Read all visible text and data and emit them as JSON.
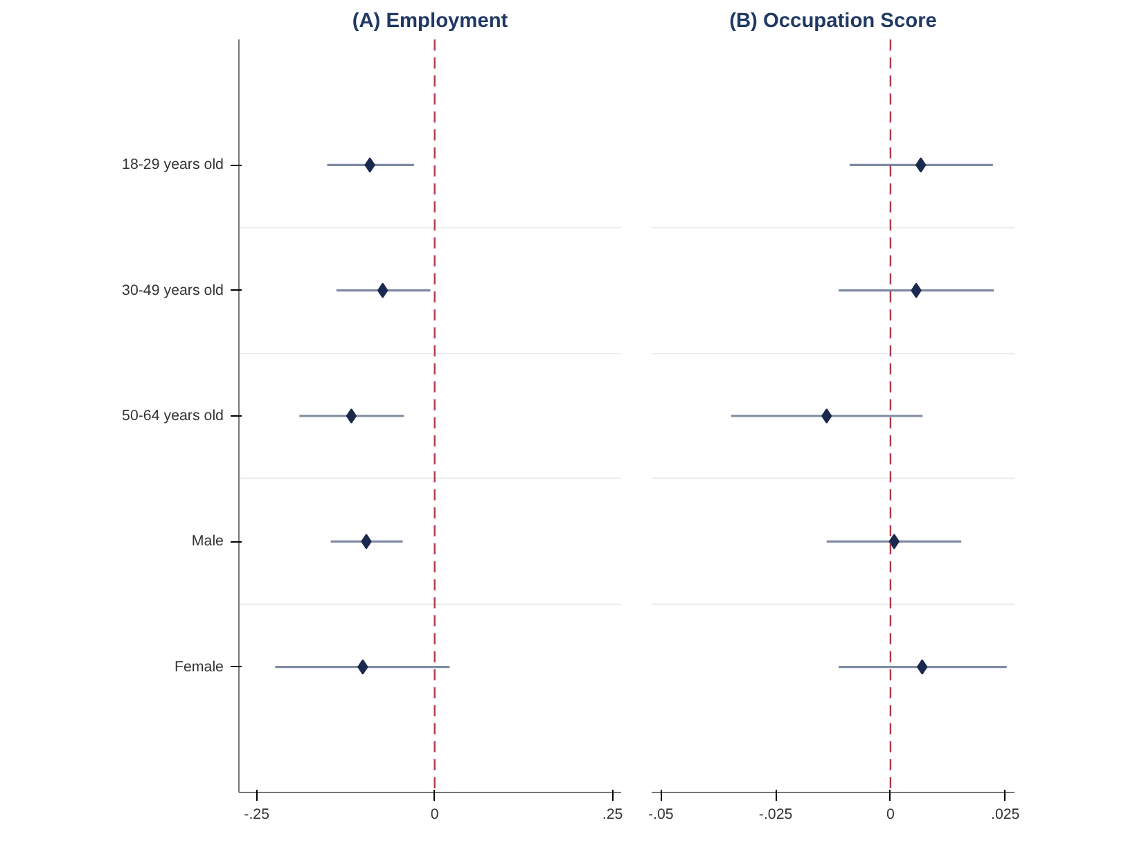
{
  "chart_data": [
    {
      "type": "scatter",
      "title": "(A) Employment",
      "orientation": "horizontal",
      "categories": [
        "18-29 years old",
        "30-49 years old",
        "50-64 years old",
        "Male",
        "Female"
      ],
      "values": [
        -0.091,
        -0.073,
        -0.117,
        -0.096,
        -0.101
      ],
      "errors": [
        [
          -0.151,
          -0.029
        ],
        [
          -0.138,
          -0.006
        ],
        [
          -0.19,
          -0.043
        ],
        [
          -0.146,
          -0.045
        ],
        [
          -0.224,
          0.021
        ]
      ],
      "color": "#1a2a4f",
      "marker": "diamond",
      "grid": "y",
      "xlim": [
        -0.275,
        0.262
      ],
      "xticks": [
        {
          "value": -0.25,
          "label": "-.25"
        },
        0,
        {
          "value": 0.25,
          "label": ".25"
        }
      ],
      "ref_lines": [
        {
          "axis": "x",
          "value": 0,
          "color": "#b03a48",
          "line_style": "dashed"
        }
      ]
    },
    {
      "type": "scatter",
      "title": "(B) Occupation Score",
      "orientation": "horizontal",
      "categories": [
        null,
        null,
        null,
        null,
        null
      ],
      "values": [
        0.0066,
        0.0056,
        -0.0139,
        0.0008,
        0.0069
      ],
      "errors": [
        [
          -0.0089,
          0.0223
        ],
        [
          -0.0113,
          0.0225
        ],
        [
          -0.0347,
          0.007
        ],
        [
          -0.0139,
          0.0154
        ],
        [
          -0.0113,
          0.0253
        ]
      ],
      "color": "#1a2a4f",
      "marker": "diamond",
      "grid": "y",
      "xlim": [
        -0.052,
        0.027
      ],
      "xticks": [
        {
          "value": -0.05,
          "label": "-.05"
        },
        {
          "value": -0.025,
          "label": "-.025"
        },
        0,
        {
          "value": 0.025,
          "label": ".025"
        }
      ],
      "ref_lines": [
        {
          "axis": "x",
          "value": 0,
          "color": "#b03a48",
          "line_style": "dashed"
        }
      ]
    }
  ]
}
